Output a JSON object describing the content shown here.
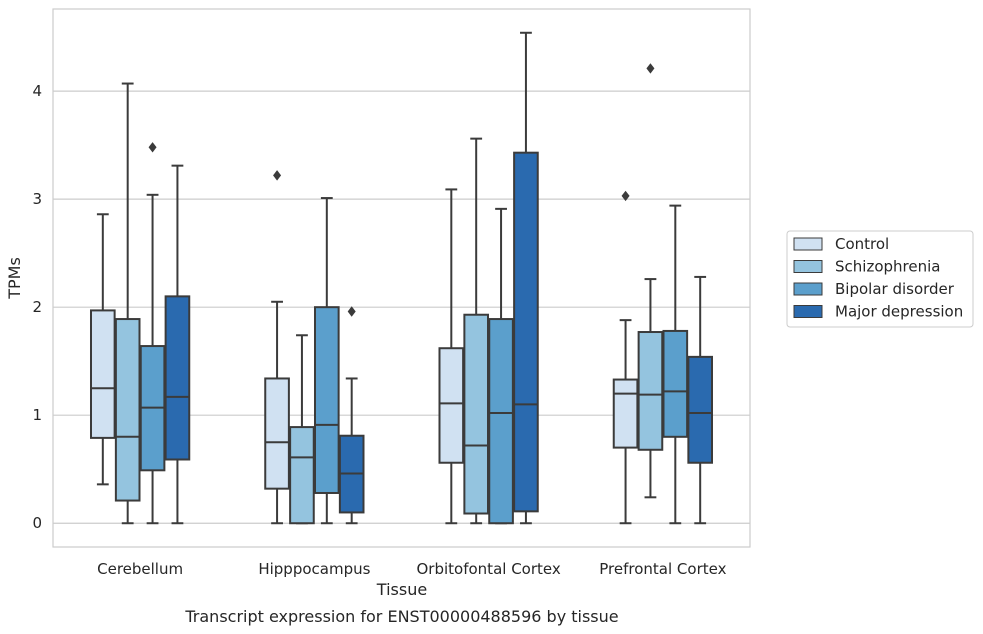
{
  "chart_data": {
    "type": "boxplot",
    "xlabel": "Tissue",
    "ylabel": "TPMs",
    "caption": "Transcript expression for ENST00000488596 by tissue",
    "categories": [
      "Cerebellum",
      "Hipppocampus",
      "Orbitofontal Cortex",
      "Prefrontal Cortex"
    ],
    "ylim": [
      -0.22,
      4.76
    ],
    "yticks": [
      0,
      1,
      2,
      3,
      4
    ],
    "grid": "horizontal",
    "legend_position": "right",
    "series": [
      {
        "name": "Control",
        "color": "#d0e1f2",
        "boxes": [
          {
            "whisker_low": 0.36,
            "q1": 0.79,
            "median": 1.25,
            "q3": 1.97,
            "whisker_high": 2.86,
            "outliers": []
          },
          {
            "whisker_low": 0.0,
            "q1": 0.32,
            "median": 0.75,
            "q3": 1.34,
            "whisker_high": 2.05,
            "outliers": [
              3.22
            ]
          },
          {
            "whisker_low": 0.0,
            "q1": 0.56,
            "median": 1.11,
            "q3": 1.62,
            "whisker_high": 3.09,
            "outliers": []
          },
          {
            "whisker_low": 0.0,
            "q1": 0.7,
            "median": 1.2,
            "q3": 1.33,
            "whisker_high": 1.88,
            "outliers": [
              3.03
            ]
          }
        ]
      },
      {
        "name": "Schizophrenia",
        "color": "#94c4df",
        "boxes": [
          {
            "whisker_low": 0.0,
            "q1": 0.21,
            "median": 0.8,
            "q3": 1.89,
            "whisker_high": 4.07,
            "outliers": []
          },
          {
            "whisker_low": 0.0,
            "q1": 0.0,
            "median": 0.61,
            "q3": 0.89,
            "whisker_high": 1.74,
            "outliers": []
          },
          {
            "whisker_low": 0.0,
            "q1": 0.09,
            "median": 0.72,
            "q3": 1.93,
            "whisker_high": 3.56,
            "outliers": []
          },
          {
            "whisker_low": 0.24,
            "q1": 0.68,
            "median": 1.19,
            "q3": 1.77,
            "whisker_high": 2.26,
            "outliers": [
              4.21
            ]
          }
        ]
      },
      {
        "name": "Bipolar disorder",
        "color": "#5b9fcc",
        "boxes": [
          {
            "whisker_low": 0.0,
            "q1": 0.49,
            "median": 1.07,
            "q3": 1.64,
            "whisker_high": 3.04,
            "outliers": [
              3.48
            ]
          },
          {
            "whisker_low": 0.0,
            "q1": 0.28,
            "median": 0.91,
            "q3": 2.0,
            "whisker_high": 3.01,
            "outliers": []
          },
          {
            "whisker_low": 0.0,
            "q1": 0.0,
            "median": 1.02,
            "q3": 1.89,
            "whisker_high": 2.91,
            "outliers": []
          },
          {
            "whisker_low": 0.0,
            "q1": 0.8,
            "median": 1.22,
            "q3": 1.78,
            "whisker_high": 2.94,
            "outliers": []
          }
        ]
      },
      {
        "name": "Major depression",
        "color": "#2a6aaf",
        "boxes": [
          {
            "whisker_low": 0.0,
            "q1": 0.59,
            "median": 1.17,
            "q3": 2.1,
            "whisker_high": 3.31,
            "outliers": []
          },
          {
            "whisker_low": 0.0,
            "q1": 0.1,
            "median": 0.46,
            "q3": 0.81,
            "whisker_high": 1.34,
            "outliers": [
              1.96
            ]
          },
          {
            "whisker_low": 0.0,
            "q1": 0.11,
            "median": 1.1,
            "q3": 3.43,
            "whisker_high": 4.54,
            "outliers": []
          },
          {
            "whisker_low": 0.0,
            "q1": 0.56,
            "median": 1.02,
            "q3": 1.54,
            "whisker_high": 2.28,
            "outliers": []
          }
        ]
      }
    ]
  }
}
